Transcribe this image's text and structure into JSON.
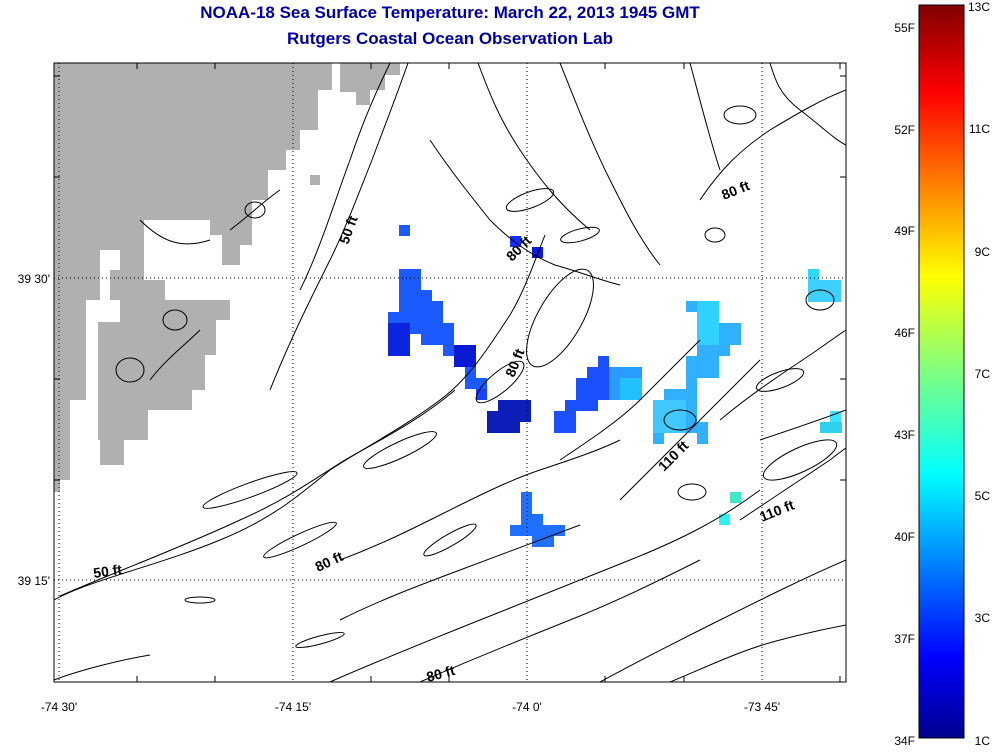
{
  "header": {
    "title": "NOAA-18 Sea Surface Temperature:  March 22, 2013 1945 GMT",
    "subtitle": "Rutgers Coastal Ocean Observation Lab"
  },
  "map": {
    "lat_labels": [
      "39 30'",
      "39 15'"
    ],
    "lon_labels": [
      "-74 30'",
      "-74 15'",
      "-74 0'",
      "-73 45'"
    ],
    "contour_labels": [
      "50 ft",
      "50 ft",
      "80 ft",
      "80 ft",
      "80 ft",
      "80 ft",
      "80 ft",
      "110 ft",
      "110 ft"
    ],
    "colors": {
      "land": "#b0b0b0",
      "background": "#ffffff",
      "contour": "#000000"
    }
  },
  "colorbar": {
    "fahrenheit_labels": [
      "55F",
      "52F",
      "49F",
      "46F",
      "43F",
      "40F",
      "37F",
      "34F"
    ],
    "celsius_labels": [
      "13C",
      "11C",
      "9C",
      "7C",
      "5C",
      "3C",
      "1C"
    ],
    "range_c": [
      1,
      13
    ],
    "colormap": "jet"
  }
}
